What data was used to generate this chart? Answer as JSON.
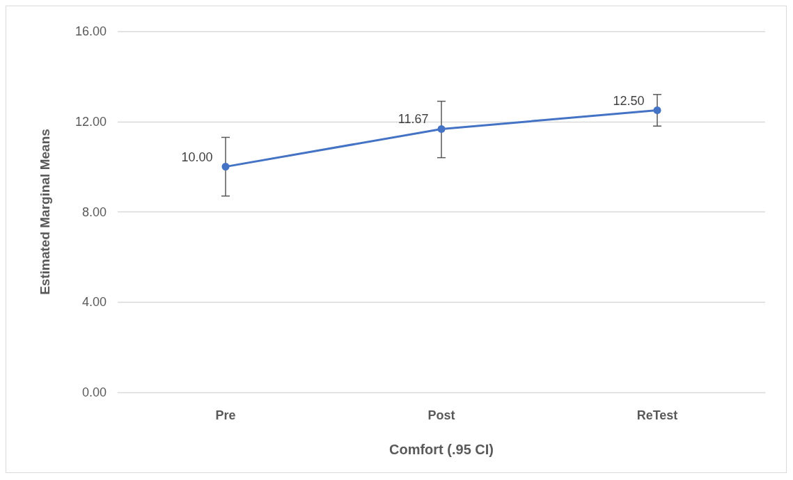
{
  "chart_data": {
    "type": "line",
    "xlabel": "Comfort (.95 CI)",
    "ylabel": "Estimated Marginal Means",
    "categories": [
      "Pre",
      "Post",
      "ReTest"
    ],
    "series": [
      {
        "color": "#4472c4",
        "values": [
          10,
          11.67,
          12.5
        ],
        "value_labels": [
          "10.00",
          "11.67",
          "12.50"
        ],
        "errors": [
          [
            8.7,
            11.3
          ],
          [
            10.4,
            12.9
          ],
          [
            11.8,
            13.2
          ]
        ]
      }
    ],
    "ylim": [
      0,
      16
    ],
    "yticks": [
      {
        "value": 0,
        "label": "0.00"
      },
      {
        "value": 4,
        "label": "4.00"
      },
      {
        "value": 8,
        "label": "8.00"
      },
      {
        "value": 12,
        "label": "12.00"
      },
      {
        "value": 16,
        "label": "16.00"
      }
    ],
    "grid": "y",
    "marker": "circle",
    "line_style": "solid"
  }
}
